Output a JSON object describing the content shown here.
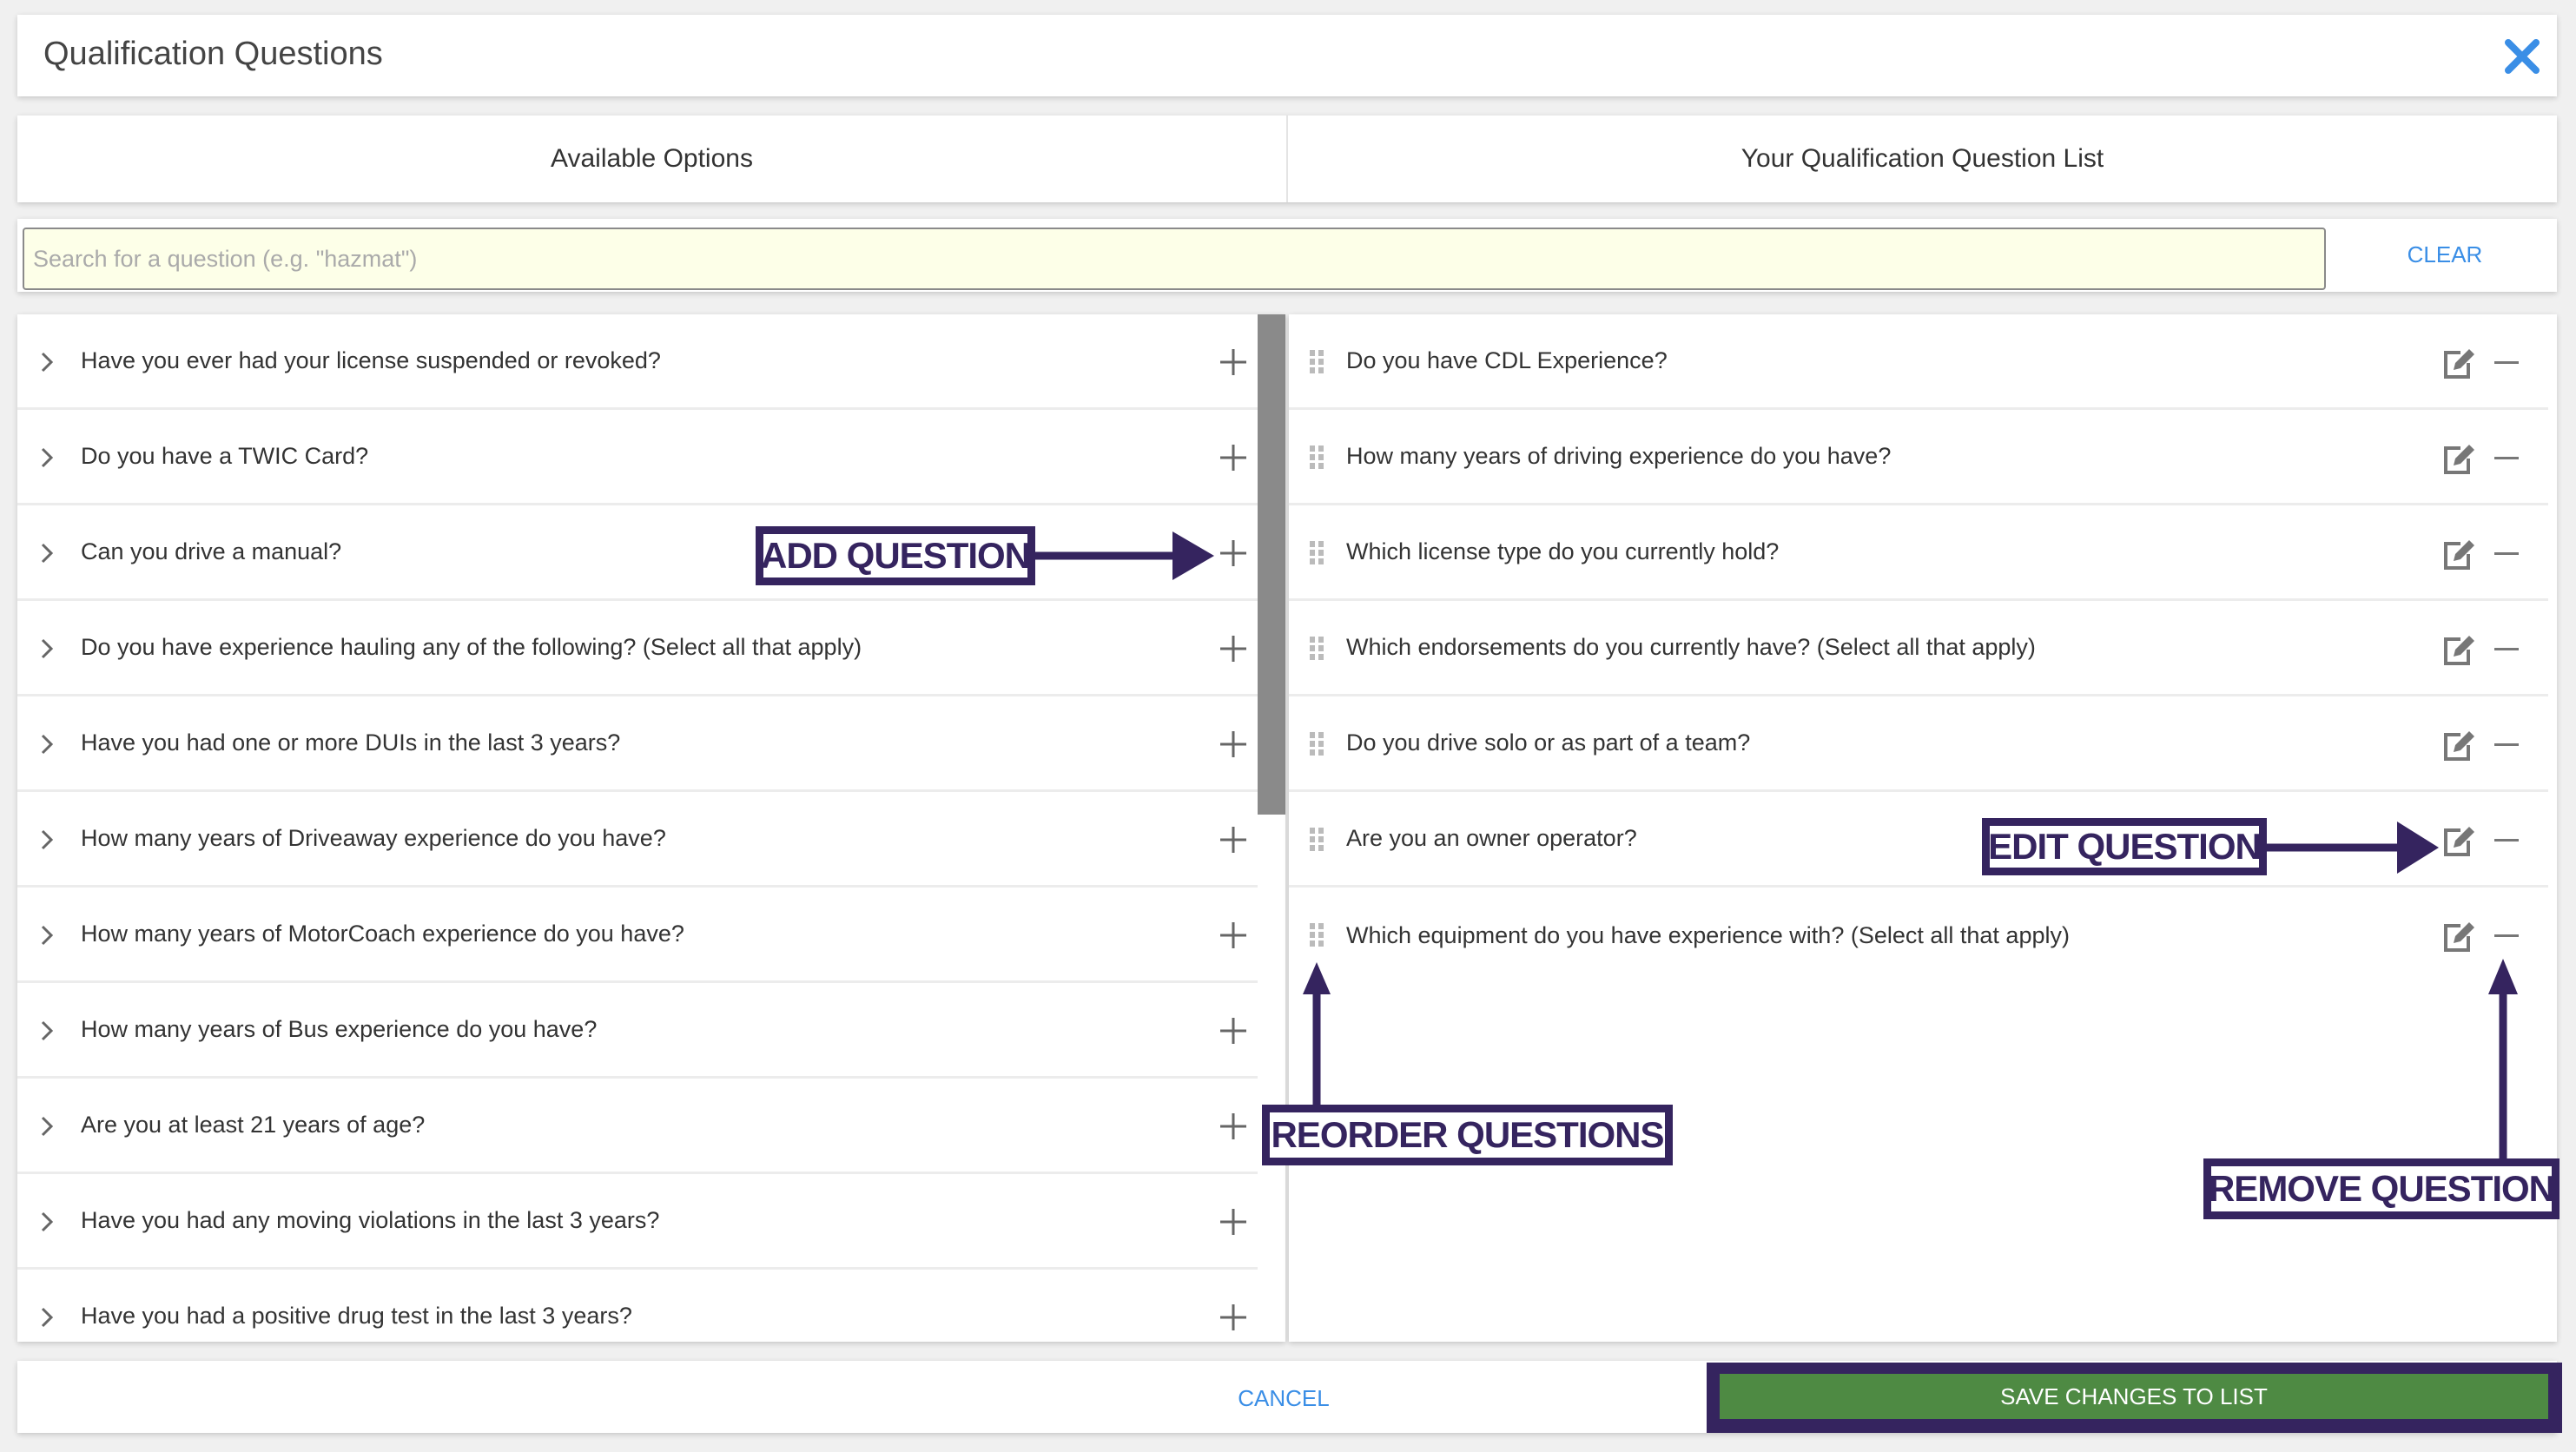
{
  "dialog": {
    "title": "Qualification Questions",
    "close_icon": "close-x-icon",
    "close_color": "#3a8ee6"
  },
  "tabs": [
    {
      "label": "Available Options"
    },
    {
      "label": "Your Qualification Question List"
    }
  ],
  "search": {
    "placeholder": "Search for a question (e.g. \"hazmat\")",
    "value": "",
    "clear_label": "CLEAR"
  },
  "available_options": [
    "Have you ever had your license suspended or revoked?",
    "Do you have a TWIC Card?",
    "Can you drive a manual?",
    "Do you have experience hauling any of the following? (Select all that apply)",
    "Have you had one or more DUIs in the last 3 years?",
    "How many years of Driveaway experience do you have?",
    "How many years of MotorCoach experience do you have?",
    "How many years of Bus experience do you have?",
    "Are you at least 21 years of age?",
    "Have you had any moving violations in the last 3 years?",
    "Have you had a positive drug test in the last 3 years?"
  ],
  "question_list": [
    "Do you have CDL Experience?",
    "How many years of driving experience do you have?",
    "Which license type do you currently hold?",
    "Which endorsements do you currently have? (Select all that apply)",
    "Do you drive solo or as part of a team?",
    "Are you an owner operator?",
    "Which equipment do you have experience with? (Select all that apply)"
  ],
  "footer": {
    "cancel_label": "CANCEL",
    "save_label": "SAVE CHANGES TO LIST",
    "save_color": "#4e8a43"
  },
  "annotations": {
    "add": "ADD QUESTION",
    "edit": "EDIT QUESTION",
    "reorder": "REORDER QUESTIONS",
    "remove": "REMOVE QUESTION",
    "color": "#35245f"
  }
}
